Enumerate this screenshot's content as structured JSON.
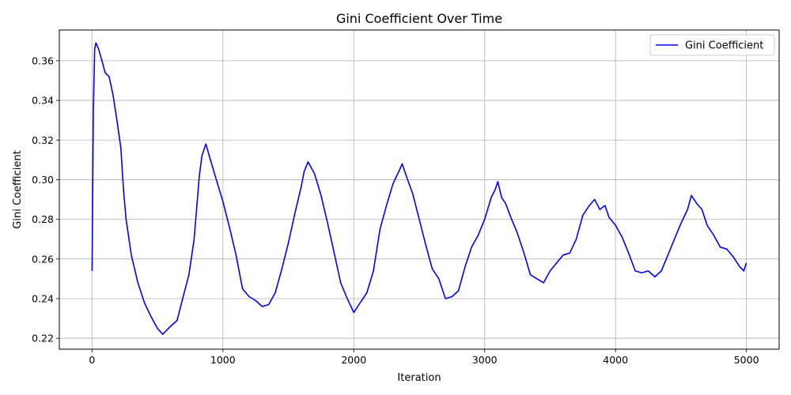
{
  "chart_data": {
    "type": "line",
    "title": "Gini Coefficient Over Time",
    "xlabel": "Iteration",
    "ylabel": "Gini Coefficient",
    "xlim": [
      -250,
      5250
    ],
    "ylim": [
      0.2145,
      0.3755
    ],
    "xticks": [
      0,
      1000,
      2000,
      3000,
      4000,
      5000
    ],
    "xtick_labels": [
      "0",
      "1000",
      "2000",
      "3000",
      "4000",
      "5000"
    ],
    "yticks": [
      0.22,
      0.24,
      0.26,
      0.28,
      0.3,
      0.32,
      0.34,
      0.36
    ],
    "ytick_labels": [
      "0.22",
      "0.24",
      "0.26",
      "0.28",
      "0.30",
      "0.32",
      "0.34",
      "0.36"
    ],
    "grid": true,
    "legend_position": "top-right",
    "series": [
      {
        "name": "Gini Coefficient",
        "color": "#0000ff",
        "x": [
          0,
          10,
          20,
          30,
          50,
          80,
          100,
          130,
          160,
          190,
          220,
          240,
          260,
          300,
          350,
          400,
          450,
          500,
          540,
          600,
          650,
          700,
          740,
          780,
          820,
          840,
          870,
          900,
          950,
          1000,
          1050,
          1100,
          1150,
          1200,
          1250,
          1300,
          1350,
          1400,
          1450,
          1500,
          1550,
          1600,
          1620,
          1650,
          1700,
          1750,
          1800,
          1850,
          1900,
          1950,
          2000,
          2050,
          2100,
          2150,
          2200,
          2250,
          2300,
          2350,
          2370,
          2400,
          2450,
          2500,
          2550,
          2600,
          2650,
          2700,
          2750,
          2800,
          2850,
          2900,
          2950,
          3000,
          3050,
          3080,
          3100,
          3130,
          3160,
          3200,
          3250,
          3300,
          3350,
          3400,
          3450,
          3500,
          3550,
          3600,
          3650,
          3700,
          3750,
          3800,
          3840,
          3880,
          3920,
          3950,
          4000,
          4050,
          4100,
          4150,
          4200,
          4250,
          4300,
          4350,
          4400,
          4450,
          4500,
          4550,
          4580,
          4620,
          4660,
          4700,
          4750,
          4800,
          4850,
          4900,
          4950,
          4980,
          5000
        ],
        "y": [
          0.254,
          0.335,
          0.366,
          0.369,
          0.366,
          0.359,
          0.354,
          0.352,
          0.343,
          0.33,
          0.316,
          0.295,
          0.28,
          0.262,
          0.248,
          0.238,
          0.231,
          0.225,
          0.222,
          0.226,
          0.229,
          0.242,
          0.252,
          0.27,
          0.302,
          0.312,
          0.318,
          0.311,
          0.3,
          0.289,
          0.276,
          0.262,
          0.245,
          0.241,
          0.239,
          0.236,
          0.237,
          0.243,
          0.255,
          0.268,
          0.283,
          0.297,
          0.304,
          0.309,
          0.303,
          0.292,
          0.278,
          0.263,
          0.248,
          0.24,
          0.233,
          0.238,
          0.243,
          0.254,
          0.275,
          0.287,
          0.298,
          0.305,
          0.308,
          0.302,
          0.293,
          0.28,
          0.267,
          0.255,
          0.25,
          0.24,
          0.241,
          0.244,
          0.256,
          0.266,
          0.272,
          0.28,
          0.291,
          0.295,
          0.299,
          0.291,
          0.288,
          0.281,
          0.273,
          0.263,
          0.252,
          0.25,
          0.248,
          0.254,
          0.258,
          0.262,
          0.263,
          0.27,
          0.282,
          0.287,
          0.29,
          0.285,
          0.287,
          0.281,
          0.277,
          0.271,
          0.263,
          0.254,
          0.253,
          0.254,
          0.251,
          0.254,
          0.262,
          0.27,
          0.278,
          0.285,
          0.292,
          0.288,
          0.285,
          0.277,
          0.272,
          0.266,
          0.265,
          0.261,
          0.256,
          0.254,
          0.258
        ]
      }
    ]
  }
}
